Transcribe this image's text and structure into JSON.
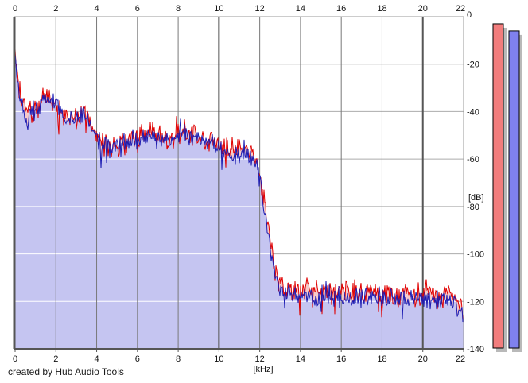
{
  "footer": {
    "credit": "created by Hub Audio Tools"
  },
  "axes": {
    "freq": {
      "unit_label": "[kHz]",
      "min": 0,
      "max": 22,
      "ticks": [
        0,
        2,
        4,
        6,
        8,
        10,
        12,
        14,
        16,
        18,
        20,
        22
      ],
      "major_every_khz": 10
    },
    "level": {
      "unit_label": "[dB]",
      "min": -140,
      "max": 0,
      "ticks": [
        0,
        -20,
        -40,
        -60,
        -80,
        -100,
        -120,
        -140
      ]
    }
  },
  "colors": {
    "red_trace": "#e00000",
    "red_area": "#f6caca",
    "blue_trace": "#1c1cb2",
    "blue_area": "#c5c5f1",
    "grid_minor_v": "#787878",
    "grid_major_v": "#565656",
    "grid_h": "#ababab",
    "grid_h_over_fill": "#ffffff",
    "border_dark": "#555555",
    "border_light": "#999999",
    "meter_red": "#f27d7d",
    "meter_blue": "#7f81ef",
    "meter_shadow": "#b9b9b9",
    "meter_border": "#000000"
  },
  "chart_data": {
    "type": "line",
    "title": "",
    "xlabel": "[kHz]",
    "ylabel": "[dB]",
    "xlim": [
      0,
      22
    ],
    "ylim": [
      -140,
      0
    ],
    "grid": true,
    "legend": "none",
    "description": "Stereo audio spectrum, two noisy per-pixel traces (red and blue channels) with filled areas; broadband content to ~12 kHz then steep cutoff to a ~-118 dB noise floor up to 22 kHz.",
    "series": [
      {
        "name": "red-channel-spectrum",
        "color": "#e00000",
        "fill": "#f6caca",
        "noise_db": 6,
        "seed": 1337,
        "envelope_khz_db": [
          [
            0.0,
            -15.5
          ],
          [
            0.08,
            -21
          ],
          [
            0.2,
            -32
          ],
          [
            0.5,
            -39
          ],
          [
            0.9,
            -40
          ],
          [
            1.2,
            -38
          ],
          [
            1.55,
            -34
          ],
          [
            1.8,
            -36
          ],
          [
            2.0,
            -38
          ],
          [
            2.4,
            -42
          ],
          [
            2.9,
            -44
          ],
          [
            3.35,
            -39
          ],
          [
            3.7,
            -45
          ],
          [
            4.1,
            -51
          ],
          [
            4.6,
            -55
          ],
          [
            5.2,
            -54
          ],
          [
            6.0,
            -51
          ],
          [
            6.5,
            -49
          ],
          [
            7.2,
            -51
          ],
          [
            7.8,
            -51
          ],
          [
            8.3,
            -48
          ],
          [
            9.0,
            -50
          ],
          [
            9.6,
            -52
          ],
          [
            10.2,
            -55
          ],
          [
            10.9,
            -57
          ],
          [
            11.4,
            -55
          ],
          [
            11.8,
            -60
          ],
          [
            12.0,
            -66
          ],
          [
            12.3,
            -82
          ],
          [
            12.6,
            -100
          ],
          [
            12.9,
            -111
          ],
          [
            13.3,
            -115
          ],
          [
            14.5,
            -116
          ],
          [
            16.0,
            -116
          ],
          [
            17.5,
            -116
          ],
          [
            19.0,
            -117
          ],
          [
            20.5,
            -117
          ],
          [
            21.5,
            -118
          ],
          [
            21.9,
            -123
          ],
          [
            22.0,
            -131
          ]
        ]
      },
      {
        "name": "blue-channel-spectrum",
        "color": "#1c1cb2",
        "fill": "#c5c5f1",
        "noise_db": 5,
        "seed": 9042,
        "envelope_khz_db": [
          [
            0.0,
            -16.5
          ],
          [
            0.08,
            -22
          ],
          [
            0.2,
            -33
          ],
          [
            0.5,
            -40
          ],
          [
            0.9,
            -40
          ],
          [
            1.2,
            -37
          ],
          [
            1.55,
            -34
          ],
          [
            1.8,
            -36
          ],
          [
            2.0,
            -37
          ],
          [
            2.4,
            -43
          ],
          [
            2.9,
            -45
          ],
          [
            3.35,
            -40
          ],
          [
            3.7,
            -46
          ],
          [
            4.1,
            -52
          ],
          [
            4.6,
            -56
          ],
          [
            5.2,
            -55
          ],
          [
            6.0,
            -52
          ],
          [
            6.5,
            -50
          ],
          [
            7.2,
            -52
          ],
          [
            7.8,
            -52
          ],
          [
            8.3,
            -49
          ],
          [
            9.0,
            -51
          ],
          [
            9.6,
            -53
          ],
          [
            10.2,
            -56
          ],
          [
            10.9,
            -58
          ],
          [
            11.4,
            -56
          ],
          [
            11.8,
            -61
          ],
          [
            12.0,
            -68
          ],
          [
            12.3,
            -85
          ],
          [
            12.6,
            -103
          ],
          [
            12.9,
            -113
          ],
          [
            13.3,
            -117
          ],
          [
            14.5,
            -118
          ],
          [
            16.0,
            -118
          ],
          [
            17.5,
            -118
          ],
          [
            19.0,
            -119
          ],
          [
            20.5,
            -119
          ],
          [
            21.5,
            -120
          ],
          [
            21.9,
            -125
          ],
          [
            22.0,
            -129
          ]
        ]
      }
    ],
    "meters": [
      {
        "name": "red-level-meter",
        "value_db": -3,
        "fill": "#f27d7d"
      },
      {
        "name": "blue-level-meter",
        "value_db": -6,
        "fill": "#7f81ef"
      }
    ]
  }
}
